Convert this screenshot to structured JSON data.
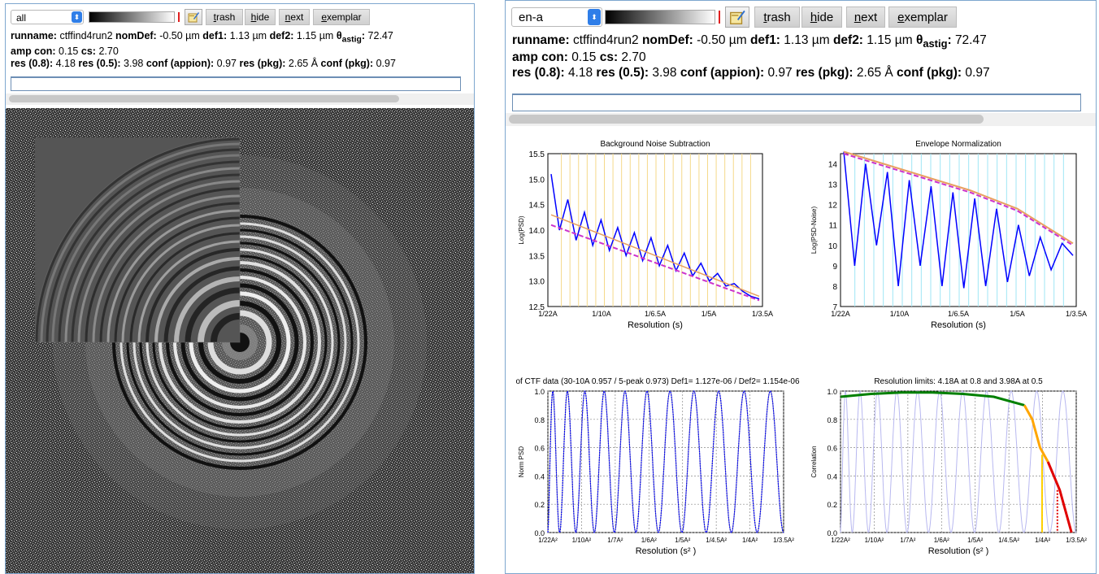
{
  "left": {
    "select_value": "all",
    "buttons": {
      "trash": {
        "acc": "t",
        "rest": "rash"
      },
      "hide": {
        "acc": "h",
        "rest": "ide"
      },
      "next": {
        "acc": "n",
        "rest": "ext"
      },
      "exemplar": {
        "acc": "e",
        "rest": "xemplar"
      }
    },
    "input_value": ""
  },
  "right": {
    "select_value": "en-a",
    "buttons": {
      "trash": {
        "acc": "t",
        "rest": "rash"
      },
      "hide": {
        "acc": "h",
        "rest": "ide"
      },
      "next": {
        "acc": "n",
        "rest": "ext"
      },
      "exemplar": {
        "acc": "e",
        "rest": "xemplar"
      }
    },
    "input_value": ""
  },
  "info": {
    "runname_label": "runname:",
    "runname": "ctffind4run2",
    "nomdef_label": "nomDef:",
    "nomdef": "-0.50 µm",
    "def1_label": "def1:",
    "def1": "1.13 µm",
    "def2_label": "def2:",
    "def2": "1.15 µm",
    "theta_label": "θ",
    "theta_sub": "astig",
    "theta_colon": ":",
    "theta": "72.47",
    "ampcon_label": "amp con:",
    "ampcon": "0.15",
    "cs_label": "cs:",
    "cs": "2.70",
    "res08_label": "res (0.8):",
    "res08": "4.18",
    "res05_label": "res (0.5):",
    "res05": "3.98",
    "confappion_label": "conf (appion):",
    "confappion": "0.97",
    "respkg_label": "res (pkg):",
    "respkg": "2.65 Å",
    "confpkg_label": "conf (pkg):",
    "confpkg": "0.97"
  },
  "icons": {
    "select_caret": "updown-chevron-icon",
    "gradient": "grayscale-gradient-icon",
    "edit": "edit-note-icon"
  },
  "colors": {
    "caret_blue": "#2f7ee8",
    "panel_border": "#7ea7cf"
  },
  "chart_data": [
    {
      "type": "line",
      "title": "Background Noise Subtraction",
      "xlabel": "Resolution (s)",
      "ylabel": "Log(PSD)",
      "ylim": [
        12.5,
        15.5
      ],
      "y_ticks": [
        "12.5",
        "13.0",
        "13.5",
        "14.0",
        "14.5",
        "15.0",
        "15.5"
      ],
      "x_ticks": [
        "1/22A",
        "1/10A",
        "1/6.5A",
        "1/5A",
        "1/3.5A"
      ],
      "grid": "vertical",
      "series": [
        {
          "name": "",
          "color": "#0000ff",
          "values": [
            15.1,
            14.0,
            14.6,
            13.8,
            14.35,
            13.7,
            14.2,
            13.6,
            14.05,
            13.5,
            13.95,
            13.4,
            13.85,
            13.3,
            13.7,
            13.2,
            13.55,
            13.1,
            13.35,
            13.0,
            13.15,
            12.9,
            12.95,
            12.8,
            12.7,
            12.65
          ]
        }
      ]
    },
    {
      "type": "line",
      "title": "Envelope Normalization",
      "xlabel": "Resolution (s)",
      "ylabel": "Log(PSD-Noise)",
      "ylim": [
        7,
        14.5
      ],
      "y_ticks": [
        "7",
        "8",
        "9",
        "10",
        "11",
        "12",
        "13",
        "14"
      ],
      "x_ticks": [
        "1/22A",
        "1/10A",
        "1/6.5A",
        "1/5A",
        "1/3.5A"
      ],
      "grid": "vertical",
      "series": [
        {
          "name": "",
          "color": "#0000ff",
          "values": [
            14.6,
            9.0,
            14.0,
            10.0,
            13.6,
            8.0,
            13.2,
            9.0,
            12.9,
            8.0,
            12.6,
            7.9,
            12.3,
            8.0,
            11.8,
            8.2,
            11.0,
            8.5,
            10.4,
            8.8,
            10.1,
            9.5
          ]
        }
      ]
    },
    {
      "type": "line",
      "title": "of CTF data (30-10A 0.957 / 5-peak 0.973) Def1= 1.127e-06 / Def2= 1.154e-06",
      "xlabel": "Resolution (s² )",
      "ylabel": "Norm PSD",
      "ylim": [
        0.0,
        1.0
      ],
      "y_ticks": [
        "0.0",
        "0.2",
        "0.4",
        "0.6",
        "0.8",
        "1.0"
      ],
      "x_ticks": [
        "1/22A²",
        "1/10A²",
        "1/7A²",
        "1/6A²",
        "1/5A²",
        "1/4.5A²",
        "1/4A²",
        "1/3.5A²"
      ],
      "grid": "dashed",
      "series": [
        {
          "name": "",
          "color": "#0000ff",
          "oscillations": 22
        }
      ]
    },
    {
      "type": "line",
      "title": "Resolution limits: 4.18A at 0.8 and 3.98A at 0.5",
      "xlabel": "Resolution (s² )",
      "ylabel": "Correlation",
      "ylim": [
        0.0,
        1.0
      ],
      "y_ticks": [
        "0.0",
        "0.2",
        "0.4",
        "0.6",
        "0.8",
        "1.0"
      ],
      "x_ticks": [
        "1/22A²",
        "1/10A²",
        "1/7A²",
        "1/6A²",
        "1/5A²",
        "1/4.5A²",
        "1/4A²",
        "1/3.5A²"
      ],
      "grid": "dashed",
      "series": [
        {
          "name": "",
          "color": "#008000",
          "values": [
            0.96,
            0.98,
            0.99,
            0.99,
            0.98,
            0.96,
            0.9
          ]
        },
        {
          "name": "",
          "color": "#ffa500",
          "values": [
            0.9,
            0.8,
            0.6,
            0.5
          ]
        },
        {
          "name": "",
          "color": "#e00000",
          "values": [
            0.5,
            0.3,
            0.0
          ]
        }
      ]
    }
  ]
}
